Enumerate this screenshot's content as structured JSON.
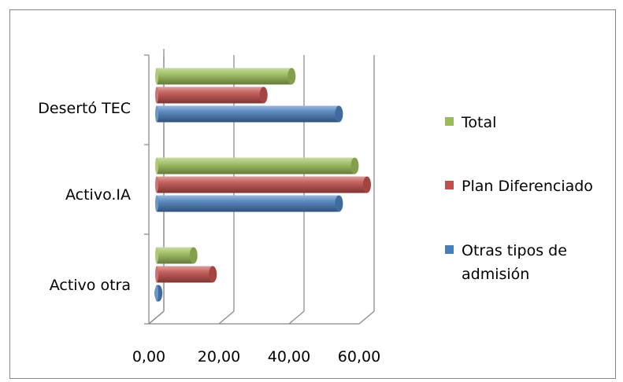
{
  "chart_data": {
    "type": "bar",
    "orientation": "horizontal",
    "style": "3d-cylinder",
    "categories": [
      "Activo otra",
      "Activo.IA",
      "Desertó TEC"
    ],
    "series": [
      {
        "name": "Otras tipos de admisión",
        "color": "#4a7ebb",
        "values": [
          0.5,
          52.0,
          52.0
        ]
      },
      {
        "name": "Plan Diferenciado",
        "color": "#c0504d",
        "values": [
          16.0,
          60.0,
          30.5
        ]
      },
      {
        "name": "Total",
        "color": "#9bbb59",
        "values": [
          10.5,
          56.5,
          38.5
        ]
      }
    ],
    "x_ticks": [
      "0,00",
      "20,00",
      "40,00",
      "60,00"
    ],
    "xlim": [
      0,
      60
    ],
    "legend_order": [
      "Total",
      "Plan Diferenciado",
      "Otras tipos de admisión"
    ],
    "legend_lines": {
      "Total": [
        "Total"
      ],
      "Plan Diferenciado": [
        "Plan Diferenciado"
      ],
      "Otras tipos de admisión": [
        "Otras tipos de",
        "admisión"
      ]
    },
    "legend_position": "right",
    "grid": "vertical"
  }
}
